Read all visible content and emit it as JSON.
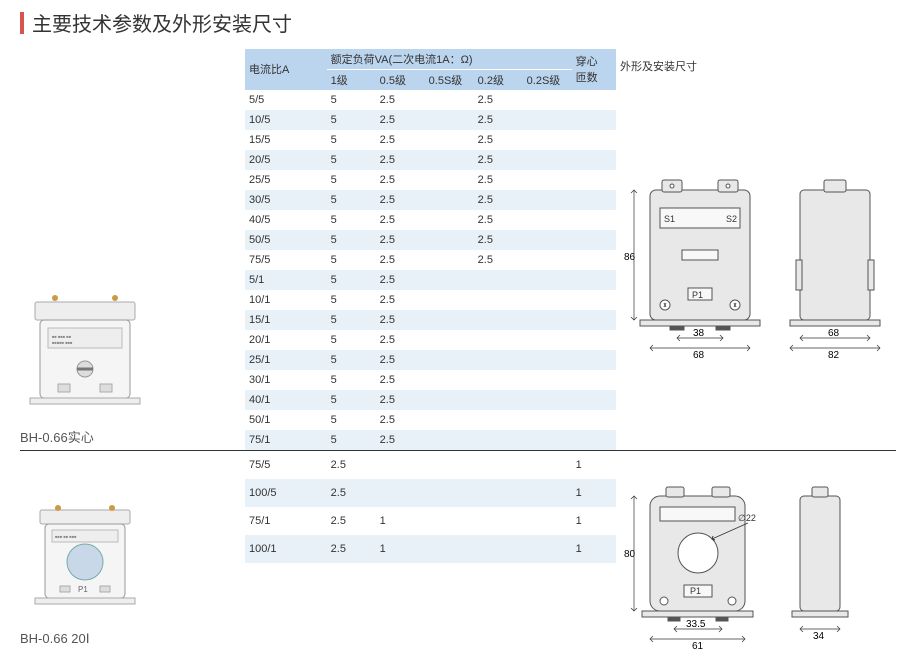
{
  "title": "主要技术参数及外形安装尺寸",
  "headers": {
    "ratio": "电流比A",
    "rated_load": "额定负荷VA(二次电流1A：Ω)",
    "cls1": "1级",
    "cls05": "0.5级",
    "cls05s": "0.5S级",
    "cls02": "0.2级",
    "cls02s": "0.2S级",
    "turns": "穿心\n匝数",
    "dims": "外形及安装尺寸"
  },
  "section1": {
    "model": "BH-0.66实心",
    "rows": [
      {
        "ratio": "5/5",
        "c1": "5",
        "c05": "2.5",
        "c05s": "",
        "c02": "2.5",
        "c02s": "",
        "turns": ""
      },
      {
        "ratio": "10/5",
        "c1": "5",
        "c05": "2.5",
        "c05s": "",
        "c02": "2.5",
        "c02s": "",
        "turns": ""
      },
      {
        "ratio": "15/5",
        "c1": "5",
        "c05": "2.5",
        "c05s": "",
        "c02": "2.5",
        "c02s": "",
        "turns": ""
      },
      {
        "ratio": "20/5",
        "c1": "5",
        "c05": "2.5",
        "c05s": "",
        "c02": "2.5",
        "c02s": "",
        "turns": ""
      },
      {
        "ratio": "25/5",
        "c1": "5",
        "c05": "2.5",
        "c05s": "",
        "c02": "2.5",
        "c02s": "",
        "turns": ""
      },
      {
        "ratio": "30/5",
        "c1": "5",
        "c05": "2.5",
        "c05s": "",
        "c02": "2.5",
        "c02s": "",
        "turns": ""
      },
      {
        "ratio": "40/5",
        "c1": "5",
        "c05": "2.5",
        "c05s": "",
        "c02": "2.5",
        "c02s": "",
        "turns": ""
      },
      {
        "ratio": "50/5",
        "c1": "5",
        "c05": "2.5",
        "c05s": "",
        "c02": "2.5",
        "c02s": "",
        "turns": ""
      },
      {
        "ratio": "75/5",
        "c1": "5",
        "c05": "2.5",
        "c05s": "",
        "c02": "2.5",
        "c02s": "",
        "turns": ""
      },
      {
        "ratio": "5/1",
        "c1": "5",
        "c05": "2.5",
        "c05s": "",
        "c02": "",
        "c02s": "",
        "turns": ""
      },
      {
        "ratio": "10/1",
        "c1": "5",
        "c05": "2.5",
        "c05s": "",
        "c02": "",
        "c02s": "",
        "turns": ""
      },
      {
        "ratio": "15/1",
        "c1": "5",
        "c05": "2.5",
        "c05s": "",
        "c02": "",
        "c02s": "",
        "turns": ""
      },
      {
        "ratio": "20/1",
        "c1": "5",
        "c05": "2.5",
        "c05s": "",
        "c02": "",
        "c02s": "",
        "turns": ""
      },
      {
        "ratio": "25/1",
        "c1": "5",
        "c05": "2.5",
        "c05s": "",
        "c02": "",
        "c02s": "",
        "turns": ""
      },
      {
        "ratio": "30/1",
        "c1": "5",
        "c05": "2.5",
        "c05s": "",
        "c02": "",
        "c02s": "",
        "turns": ""
      },
      {
        "ratio": "40/1",
        "c1": "5",
        "c05": "2.5",
        "c05s": "",
        "c02": "",
        "c02s": "",
        "turns": ""
      },
      {
        "ratio": "50/1",
        "c1": "5",
        "c05": "2.5",
        "c05s": "",
        "c02": "",
        "c02s": "",
        "turns": ""
      },
      {
        "ratio": "75/1",
        "c1": "5",
        "c05": "2.5",
        "c05s": "",
        "c02": "",
        "c02s": "",
        "turns": ""
      }
    ],
    "dims": {
      "h": "86",
      "w_inner": "38",
      "w_outer": "68",
      "side_w": "68",
      "side_outer": "82",
      "s1": "S1",
      "s2": "S2",
      "p1": "P1"
    }
  },
  "section2": {
    "model": "BH-0.66 20Ⅰ",
    "rows": [
      {
        "ratio": "75/5",
        "c1": "2.5",
        "c05": "",
        "c05s": "",
        "c02": "",
        "c02s": "",
        "turns": "1"
      },
      {
        "ratio": "100/5",
        "c1": "2.5",
        "c05": "",
        "c05s": "",
        "c02": "",
        "c02s": "",
        "turns": "1"
      },
      {
        "ratio": "75/1",
        "c1": "2.5",
        "c05": "1",
        "c05s": "",
        "c02": "",
        "c02s": "",
        "turns": "1"
      },
      {
        "ratio": "100/1",
        "c1": "2.5",
        "c05": "1",
        "c05s": "",
        "c02": "",
        "c02s": "",
        "turns": "1"
      }
    ],
    "dims": {
      "h": "80",
      "w_inner": "33.5",
      "w_outer": "61",
      "hole": "22",
      "side_w": "34",
      "p1": "P1"
    }
  },
  "colors": {
    "accent": "#d9534f",
    "header_bg": "#bcd5ee",
    "stripe": "#e8f0f8",
    "drawing_fill": "#e8e8e8",
    "drawing_stroke": "#555"
  }
}
